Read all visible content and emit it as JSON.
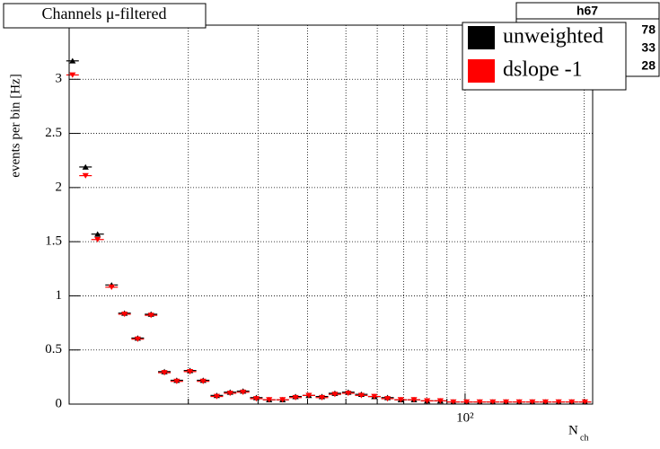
{
  "chart_data": {
    "type": "scatter",
    "title": "Channels μ-filtered",
    "ylabel": "events per bin [Hz]",
    "xlabel": "N",
    "xlabel_sub": "ch",
    "stats_title": "h67",
    "stats_values": [
      "78",
      "33",
      "28"
    ],
    "xlog": true,
    "grid": true,
    "xlim": [
      10,
      210
    ],
    "xticks": [
      {
        "value": 100,
        "label": "10²"
      }
    ],
    "xminor": [
      20,
      30,
      40,
      50,
      60,
      70,
      80,
      90,
      200
    ],
    "ylim": [
      0,
      3.5
    ],
    "yticks": [
      0,
      0.5,
      1,
      1.5,
      2,
      2.5,
      3
    ],
    "x": [
      10.2,
      11.0,
      11.8,
      12.8,
      13.8,
      14.9,
      16.1,
      17.4,
      18.7,
      20.2,
      21.8,
      23.6,
      25.5,
      27.5,
      29.7,
      32.0,
      34.6,
      37.3,
      40.3,
      43.5,
      46.9,
      50.7,
      54.7,
      59.0,
      63.7,
      68.8,
      74.3,
      80.2,
      86.6,
      93.4,
      100.9,
      108.9,
      117.5,
      126.9,
      137.0,
      147.9,
      159.6,
      172.3,
      186.0,
      200.8
    ],
    "series": [
      {
        "name": "unweighted",
        "color": "#000000",
        "marker": "triangle-up",
        "values": [
          3.17,
          2.19,
          1.57,
          1.1,
          0.84,
          0.61,
          0.83,
          0.3,
          0.22,
          0.31,
          0.22,
          0.08,
          0.11,
          0.12,
          0.06,
          0.04,
          0.04,
          0.07,
          0.08,
          0.07,
          0.1,
          0.11,
          0.09,
          0.07,
          0.06,
          0.04,
          0.04,
          0.03,
          0.03,
          0.02,
          0.02,
          0.02,
          0.02,
          0.02,
          0.02,
          0.02,
          0.02,
          0.02,
          0.02,
          0.02
        ]
      },
      {
        "name": "dslope -1",
        "color": "#ff0000",
        "marker": "triangle-down",
        "values": [
          3.04,
          2.11,
          1.52,
          1.08,
          0.83,
          0.6,
          0.82,
          0.29,
          0.21,
          0.3,
          0.21,
          0.07,
          0.1,
          0.11,
          0.05,
          0.04,
          0.04,
          0.06,
          0.08,
          0.06,
          0.09,
          0.1,
          0.08,
          0.07,
          0.05,
          0.04,
          0.04,
          0.03,
          0.03,
          0.02,
          0.02,
          0.02,
          0.02,
          0.02,
          0.02,
          0.02,
          0.02,
          0.02,
          0.02,
          0.02
        ]
      }
    ]
  }
}
